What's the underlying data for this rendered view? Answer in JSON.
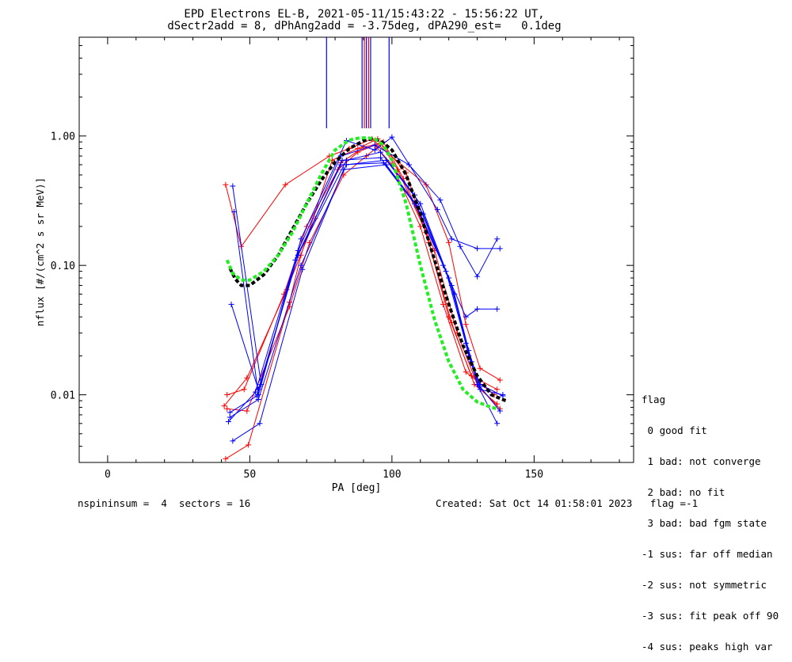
{
  "chart_data": {
    "type": "line",
    "title": "EPD Electrons EL-B, 2021-05-11/15:43:22 - 15:56:22 UT,",
    "subtitle": "dSectr2add = 8, dPhAng2add = -3.75deg, dPA290_est=   0.1deg",
    "xlabel": "PA [deg]",
    "ylabel": "nflux [#/(cm^2 s sr MeV)]",
    "xlim": [
      -10,
      185
    ],
    "ylim": [
      0.003,
      5.8
    ],
    "yscale": "log",
    "x_ticks": [
      0,
      50,
      100,
      150
    ],
    "x_tick_labels": [
      "0",
      "50",
      "100",
      "150"
    ],
    "y_ticks": [
      0.01,
      0.1,
      1.0
    ],
    "y_tick_labels": [
      "0.01",
      "0.10",
      "1.00"
    ],
    "grid": false,
    "vertical_markers": [
      {
        "x": 77,
        "color": "#0000ff"
      },
      {
        "x": 89.5,
        "color": "#0000ff"
      },
      {
        "x": 90.3,
        "color": "#ff0000"
      },
      {
        "x": 91.0,
        "color": "#0000ff"
      },
      {
        "x": 91.8,
        "color": "#ff0000"
      },
      {
        "x": 92.5,
        "color": "#0000ff"
      },
      {
        "x": 99,
        "color": "#0000ff"
      }
    ],
    "series": [
      {
        "color": "#ff0000",
        "x": [
          41.5,
          47,
          62.5,
          78,
          85,
          93,
          99,
          112,
          120,
          126,
          131,
          138
        ],
        "y": [
          0.42,
          0.14,
          0.42,
          0.7,
          0.8,
          0.95,
          0.72,
          0.42,
          0.15,
          0.035,
          0.016,
          0.013
        ]
      },
      {
        "color": "#ff0000",
        "x": [
          41,
          49,
          63,
          73,
          82,
          90,
          96,
          105,
          113,
          120,
          128,
          137
        ],
        "y": [
          0.0082,
          0.0135,
          0.065,
          0.23,
          0.62,
          0.82,
          0.88,
          0.52,
          0.15,
          0.04,
          0.014,
          0.011
        ]
      },
      {
        "color": "#ff0000",
        "x": [
          42,
          48,
          62,
          70,
          81,
          88,
          94,
          100,
          110,
          118,
          126,
          136
        ],
        "y": [
          0.01,
          0.011,
          0.06,
          0.2,
          0.55,
          0.75,
          0.85,
          0.6,
          0.2,
          0.05,
          0.015,
          0.01
        ]
      },
      {
        "color": "#ff0000",
        "x": [
          42,
          49,
          64,
          71,
          83,
          91,
          97,
          104,
          115,
          123,
          130,
          138
        ],
        "y": [
          0.0078,
          0.0075,
          0.048,
          0.15,
          0.5,
          0.7,
          0.9,
          0.47,
          0.13,
          0.03,
          0.012,
          0.0078
        ]
      },
      {
        "color": "#ff0000",
        "x": [
          41.5,
          49.5,
          64,
          68,
          79,
          88,
          95,
          102,
          112,
          121,
          129,
          137
        ],
        "y": [
          0.0032,
          0.0041,
          0.052,
          0.12,
          0.65,
          0.8,
          0.95,
          0.55,
          0.18,
          0.036,
          0.012,
          0.0085
        ]
      },
      {
        "color": "#0000ff",
        "x": [
          44,
          54,
          68,
          84,
          94,
          100,
          116,
          121,
          130,
          138
        ],
        "y": [
          0.41,
          0.012,
          0.16,
          0.92,
          0.78,
          0.98,
          0.27,
          0.16,
          0.135,
          0.135
        ]
      },
      {
        "color": "#0000ff",
        "x": [
          44.5,
          53,
          67,
          82,
          94,
          106,
          117,
          124,
          130,
          137
        ],
        "y": [
          0.26,
          0.01,
          0.13,
          0.7,
          0.85,
          0.6,
          0.32,
          0.14,
          0.082,
          0.16
        ]
      },
      {
        "color": "#0000ff",
        "x": [
          43.5,
          53,
          67,
          84,
          96,
          108,
          118,
          126,
          130,
          137
        ],
        "y": [
          0.05,
          0.011,
          0.12,
          0.65,
          0.75,
          0.35,
          0.1,
          0.04,
          0.046,
          0.046
        ]
      },
      {
        "color": "#0000ff",
        "x": [
          43,
          53,
          68,
          84,
          98,
          110,
          121,
          127,
          131,
          139
        ],
        "y": [
          0.0067,
          0.0092,
          0.1,
          0.6,
          0.65,
          0.3,
          0.07,
          0.02,
          0.011,
          0.01
        ]
      },
      {
        "color": "#0000ff",
        "x": [
          44,
          53.5,
          68.5,
          83,
          98,
          111,
          122,
          128,
          131,
          139
        ],
        "y": [
          0.0044,
          0.006,
          0.093,
          0.55,
          0.6,
          0.25,
          0.06,
          0.018,
          0.012,
          0.0098
        ]
      },
      {
        "color": "#0000ff",
        "x": [
          42.5,
          52,
          66,
          82,
          97,
          109,
          120,
          127,
          131,
          138
        ],
        "y": [
          0.0062,
          0.0105,
          0.11,
          0.6,
          0.62,
          0.28,
          0.08,
          0.022,
          0.0115,
          0.0075
        ]
      },
      {
        "color": "#0000ff",
        "x": [
          43,
          52.5,
          67,
          82.5,
          96,
          108,
          119,
          126,
          130,
          137
        ],
        "y": [
          0.0073,
          0.0098,
          0.12,
          0.65,
          0.68,
          0.3,
          0.09,
          0.025,
          0.012,
          0.006
        ]
      }
    ],
    "fits": [
      {
        "color": "#000000",
        "x": [
          43,
          45,
          47,
          50,
          55,
          60,
          65,
          70,
          75,
          80,
          85,
          90,
          93,
          96,
          100,
          105,
          110,
          115,
          120,
          125,
          130,
          135,
          140
        ],
        "y": [
          0.095,
          0.078,
          0.07,
          0.07,
          0.085,
          0.12,
          0.19,
          0.3,
          0.45,
          0.63,
          0.8,
          0.92,
          0.95,
          0.92,
          0.78,
          0.5,
          0.25,
          0.11,
          0.05,
          0.024,
          0.014,
          0.01,
          0.009
        ]
      },
      {
        "color": "#22ee22",
        "x": [
          42,
          44,
          47,
          50,
          55,
          60,
          65,
          70,
          75,
          80,
          85,
          88,
          91,
          94,
          97,
          100,
          105,
          110,
          115,
          120,
          125,
          130,
          135,
          137
        ],
        "y": [
          0.11,
          0.087,
          0.077,
          0.077,
          0.09,
          0.12,
          0.18,
          0.3,
          0.5,
          0.78,
          0.93,
          0.96,
          0.97,
          0.95,
          0.85,
          0.65,
          0.3,
          0.1,
          0.038,
          0.018,
          0.011,
          0.0088,
          0.008,
          0.0078
        ]
      }
    ]
  },
  "legend": {
    "title": "flag",
    "items": [
      " 0 good fit",
      " 1 bad: not converge",
      " 2 bad: no fit",
      " 3 bad: bad fgm state",
      "-1 sus: far off median",
      "-2 sus: not symmetric",
      "-3 sus: fit peak off 90",
      "-4 sus: peaks high var"
    ]
  },
  "footer": {
    "left": "nspininsum =  4  sectors = 16",
    "right": "Created: Sat Oct 14 01:58:01 2023   flag =-1"
  }
}
